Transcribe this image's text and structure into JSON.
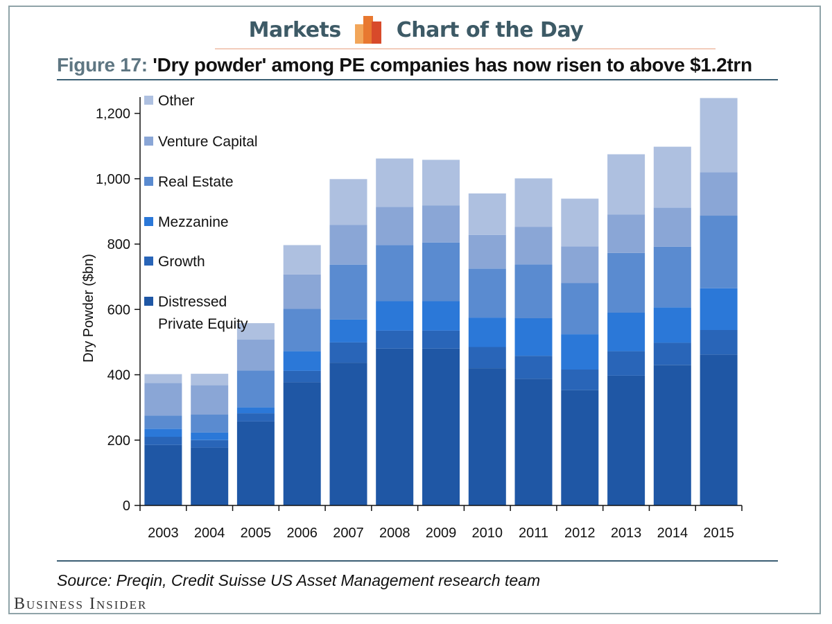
{
  "header": {
    "left_label": "Markets",
    "right_label": "Chart of the Day",
    "logo_colors": [
      "#f2a65a",
      "#e87830",
      "#d84a2a"
    ]
  },
  "figure": {
    "label": "Figure 17:",
    "title": "'Dry powder' among PE companies has now risen to above $1.2trn"
  },
  "footer": {
    "source": "Source: Preqin, Credit Suisse US Asset Management research team",
    "brand": "Business Insider"
  },
  "chart_data": {
    "type": "bar",
    "stacked": true,
    "title": "'Dry powder' among PE companies has now risen to above $1.2trn",
    "xlabel": "",
    "ylabel": "Dry Powder ($bn)",
    "ylim": [
      0,
      1250
    ],
    "yticks": [
      0,
      200,
      400,
      600,
      800,
      1000,
      1200
    ],
    "ytick_labels": [
      "0",
      "200",
      "400",
      "600",
      "800",
      "1,000",
      "1,200"
    ],
    "grid": false,
    "legend_position": "top-left",
    "categories": [
      "2003",
      "2004",
      "2005",
      "2006",
      "2007",
      "2008",
      "2009",
      "2010",
      "2011",
      "2012",
      "2013",
      "2014",
      "2015"
    ],
    "series": [
      {
        "name": "Distressed Private Equity",
        "color": "#1f57a5",
        "values": [
          185,
          177,
          257,
          377,
          437,
          480,
          480,
          420,
          388,
          353,
          397,
          430,
          462
        ]
      },
      {
        "name": "Growth",
        "color": "#2965b8",
        "values": [
          25,
          23,
          25,
          35,
          62,
          55,
          55,
          65,
          70,
          63,
          75,
          68,
          75
        ]
      },
      {
        "name": "Mezzanine",
        "color": "#2b78d8",
        "values": [
          25,
          23,
          18,
          60,
          70,
          90,
          90,
          90,
          115,
          108,
          118,
          108,
          128
        ]
      },
      {
        "name": "Real Estate",
        "color": "#5a8bd0",
        "values": [
          40,
          55,
          113,
          130,
          168,
          172,
          180,
          150,
          165,
          157,
          183,
          186,
          222
        ]
      },
      {
        "name": "Venture Capital",
        "color": "#8aa6d6",
        "values": [
          100,
          90,
          95,
          105,
          122,
          117,
          113,
          103,
          115,
          112,
          118,
          120,
          133
        ]
      },
      {
        "name": "Other",
        "color": "#aec0e0",
        "values": [
          27,
          35,
          50,
          90,
          140,
          148,
          140,
          127,
          148,
          146,
          184,
          186,
          227
        ]
      }
    ],
    "legend_order": [
      "Other",
      "Venture Capital",
      "Real Estate",
      "Mezzanine",
      "Growth",
      "Distressed Private Equity"
    ],
    "legend_lines": {
      "Distressed Private Equity": [
        "Distressed",
        "Private Equity"
      ]
    }
  }
}
